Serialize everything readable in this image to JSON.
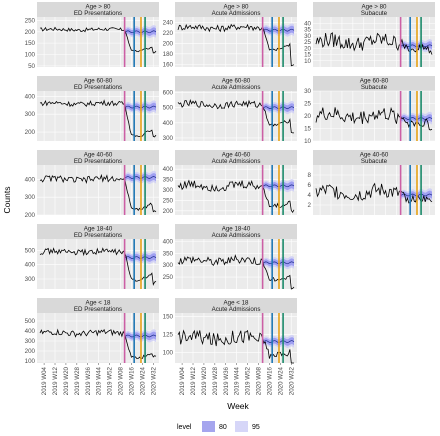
{
  "chart_data": {
    "type": "line",
    "xlabel": "Week",
    "ylabel": "Counts",
    "legend": {
      "title": "level",
      "placement": "bottom",
      "entries": [
        {
          "label": "80",
          "color": "#a5a5ee"
        },
        {
          "label": "95",
          "color": "#d6d6f8"
        }
      ]
    },
    "x_ticks": [
      "2019 W04",
      "2019 W12",
      "2019 W20",
      "2019 W28",
      "2019 W36",
      "2019 W44",
      "2019 W52",
      "2020 W08",
      "2020 W16",
      "2020 W24",
      "2020 W32"
    ],
    "vlines": [
      {
        "week": "2020 W11",
        "color": "#cc5fa5"
      },
      {
        "week": "2020 W18",
        "color": "#1f77b4"
      },
      {
        "week": "2020 W23",
        "color": "#e8a317"
      },
      {
        "week": "2020 W26",
        "color": "#1a8a6a"
      }
    ],
    "colors": {
      "observed": "#000000",
      "band80": "#8f8ff0",
      "band95": "#c9c9f7"
    },
    "panels": [
      {
        "age": "Age > 80",
        "type": "ED Presentations",
        "row": 0,
        "col": 0,
        "ylim": [
          45,
          265
        ],
        "yticks": [
          50,
          100,
          150,
          200,
          250
        ],
        "base": 210,
        "amp": 8,
        "drop": 0.55,
        "fc": 200
      },
      {
        "age": "Age > 80",
        "type": "Acute Admissions",
        "row": 0,
        "col": 1,
        "ylim": [
          155,
          250
        ],
        "yticks": [
          160,
          180,
          200,
          220,
          240
        ],
        "base": 230,
        "amp": 6,
        "drop": 0.82,
        "fc": 225
      },
      {
        "age": "Age > 80",
        "type": "Subacute",
        "row": 0,
        "col": 2,
        "ylim": [
          5,
          45
        ],
        "yticks": [
          10,
          15,
          20,
          25,
          30,
          35,
          40
        ],
        "base": 25,
        "amp": 6,
        "drop": 0.8,
        "fc": 22
      },
      {
        "age": "Age 60-80",
        "type": "ED Presentations",
        "row": 1,
        "col": 0,
        "ylim": [
          150,
          430
        ],
        "yticks": [
          200,
          300,
          400
        ],
        "base": 360,
        "amp": 14,
        "drop": 0.5,
        "fc": 340
      },
      {
        "age": "Age 60-80",
        "type": "Acute Admissions",
        "row": 1,
        "col": 1,
        "ylim": [
          280,
          610
        ],
        "yticks": [
          300,
          400,
          500,
          600
        ],
        "base": 520,
        "amp": 22,
        "drop": 0.75,
        "fc": 500
      },
      {
        "age": "Age 60-80",
        "type": "Subacute",
        "row": 1,
        "col": 2,
        "ylim": [
          10,
          30
        ],
        "yticks": [
          10,
          15,
          20,
          25,
          30
        ],
        "base": 20,
        "amp": 3,
        "drop": 0.85,
        "fc": 19
      },
      {
        "age": "Age 40-60",
        "type": "ED Presentations",
        "row": 2,
        "col": 0,
        "ylim": [
          200,
          480
        ],
        "yticks": [
          200,
          300,
          400
        ],
        "base": 400,
        "amp": 18,
        "drop": 0.58,
        "fc": 410
      },
      {
        "age": "Age 40-60",
        "type": "Acute Admissions",
        "row": 2,
        "col": 1,
        "ylim": [
          180,
          420
        ],
        "yticks": [
          200,
          250,
          300,
          350,
          400
        ],
        "base": 320,
        "amp": 22,
        "drop": 0.7,
        "fc": 320
      },
      {
        "age": "Age 40-60",
        "type": "Subacute",
        "row": 2,
        "col": 2,
        "ylim": [
          0,
          10
        ],
        "yticks": [
          2,
          4,
          6,
          8
        ],
        "base": 4.5,
        "amp": 1.5,
        "drop": 0.7,
        "fc": 4
      },
      {
        "age": "Age 18-40",
        "type": "ED Presentations",
        "row": 3,
        "col": 0,
        "ylim": [
          230,
          580
        ],
        "yticks": [
          300,
          400,
          500
        ],
        "base": 490,
        "amp": 20,
        "drop": 0.6,
        "fc": 450
      },
      {
        "age": "Age 18-40",
        "type": "Acute Admissions",
        "row": 3,
        "col": 1,
        "ylim": [
          200,
          410
        ],
        "yticks": [
          250,
          300,
          350,
          400
        ],
        "base": 320,
        "amp": 18,
        "drop": 0.75,
        "fc": 310
      },
      {
        "age": "Age < 18",
        "type": "ED Presentations",
        "row": 4,
        "col": 0,
        "ylim": [
          80,
          580
        ],
        "yticks": [
          100,
          200,
          300,
          400,
          500
        ],
        "base": 380,
        "amp": 30,
        "drop": 0.35,
        "fc": 350
      },
      {
        "age": "Age < 18",
        "type": "Acute Admissions",
        "row": 4,
        "col": 1,
        "ylim": [
          85,
          155
        ],
        "yticks": [
          100,
          125,
          150
        ],
        "base": 120,
        "amp": 10,
        "drop": 0.8,
        "fc": 115
      }
    ]
  }
}
